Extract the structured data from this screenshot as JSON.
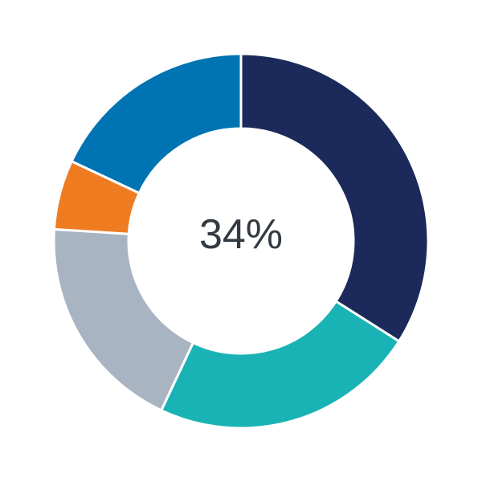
{
  "chart_data": {
    "type": "pie",
    "variant": "donut",
    "center_label": "34%",
    "values": [
      34,
      23,
      19,
      6,
      18
    ],
    "colors": [
      "#1b2a5a",
      "#1ab3b5",
      "#a9b4c2",
      "#f07c22",
      "#0074b3"
    ],
    "start": "top",
    "direction": "clockwise",
    "legend": "none"
  }
}
